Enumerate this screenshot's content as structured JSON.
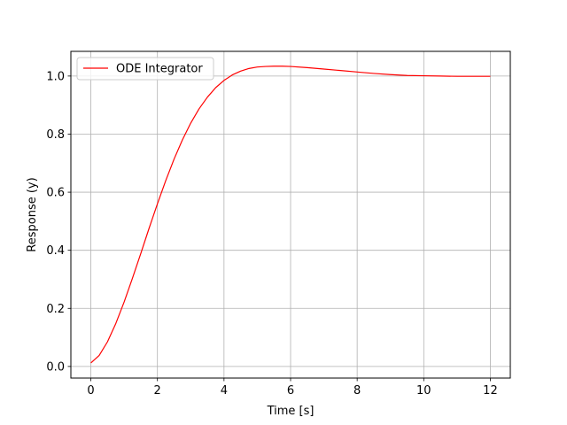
{
  "chart_data": {
    "type": "line",
    "xlabel": "Time [s]",
    "ylabel": "Response (y)",
    "xlim": [
      -0.6,
      12.6
    ],
    "ylim": [
      -0.04,
      1.085
    ],
    "xticks": [
      0,
      2,
      4,
      6,
      8,
      10,
      12
    ],
    "yticks": [
      0.0,
      0.2,
      0.4,
      0.6,
      0.8,
      1.0
    ],
    "xtick_labels": [
      "0",
      "2",
      "4",
      "6",
      "8",
      "10",
      "12"
    ],
    "ytick_labels": [
      "0.0",
      "0.2",
      "0.4",
      "0.6",
      "0.8",
      "1.0"
    ],
    "grid": true,
    "legend_position": "top-left",
    "series": [
      {
        "name": "ODE Integrator",
        "color": "#ff0000",
        "x": [
          0,
          0.25,
          0.5,
          0.75,
          1,
          1.25,
          1.5,
          1.75,
          2,
          2.25,
          2.5,
          2.75,
          3,
          3.25,
          3.5,
          3.75,
          4,
          4.25,
          4.5,
          4.75,
          5,
          5.25,
          5.5,
          5.75,
          6,
          6.5,
          7,
          7.5,
          8,
          8.5,
          9,
          9.5,
          10,
          10.5,
          11,
          11.5,
          12
        ],
        "y": [
          0.012,
          0.038,
          0.085,
          0.148,
          0.222,
          0.304,
          0.389,
          0.476,
          0.56,
          0.64,
          0.714,
          0.78,
          0.838,
          0.887,
          0.927,
          0.96,
          0.985,
          1.004,
          1.017,
          1.026,
          1.031,
          1.033,
          1.034,
          1.034,
          1.033,
          1.029,
          1.024,
          1.019,
          1.014,
          1.009,
          1.005,
          1.002,
          1.001,
          1.0,
          0.999,
          0.999,
          0.999
        ]
      }
    ]
  }
}
